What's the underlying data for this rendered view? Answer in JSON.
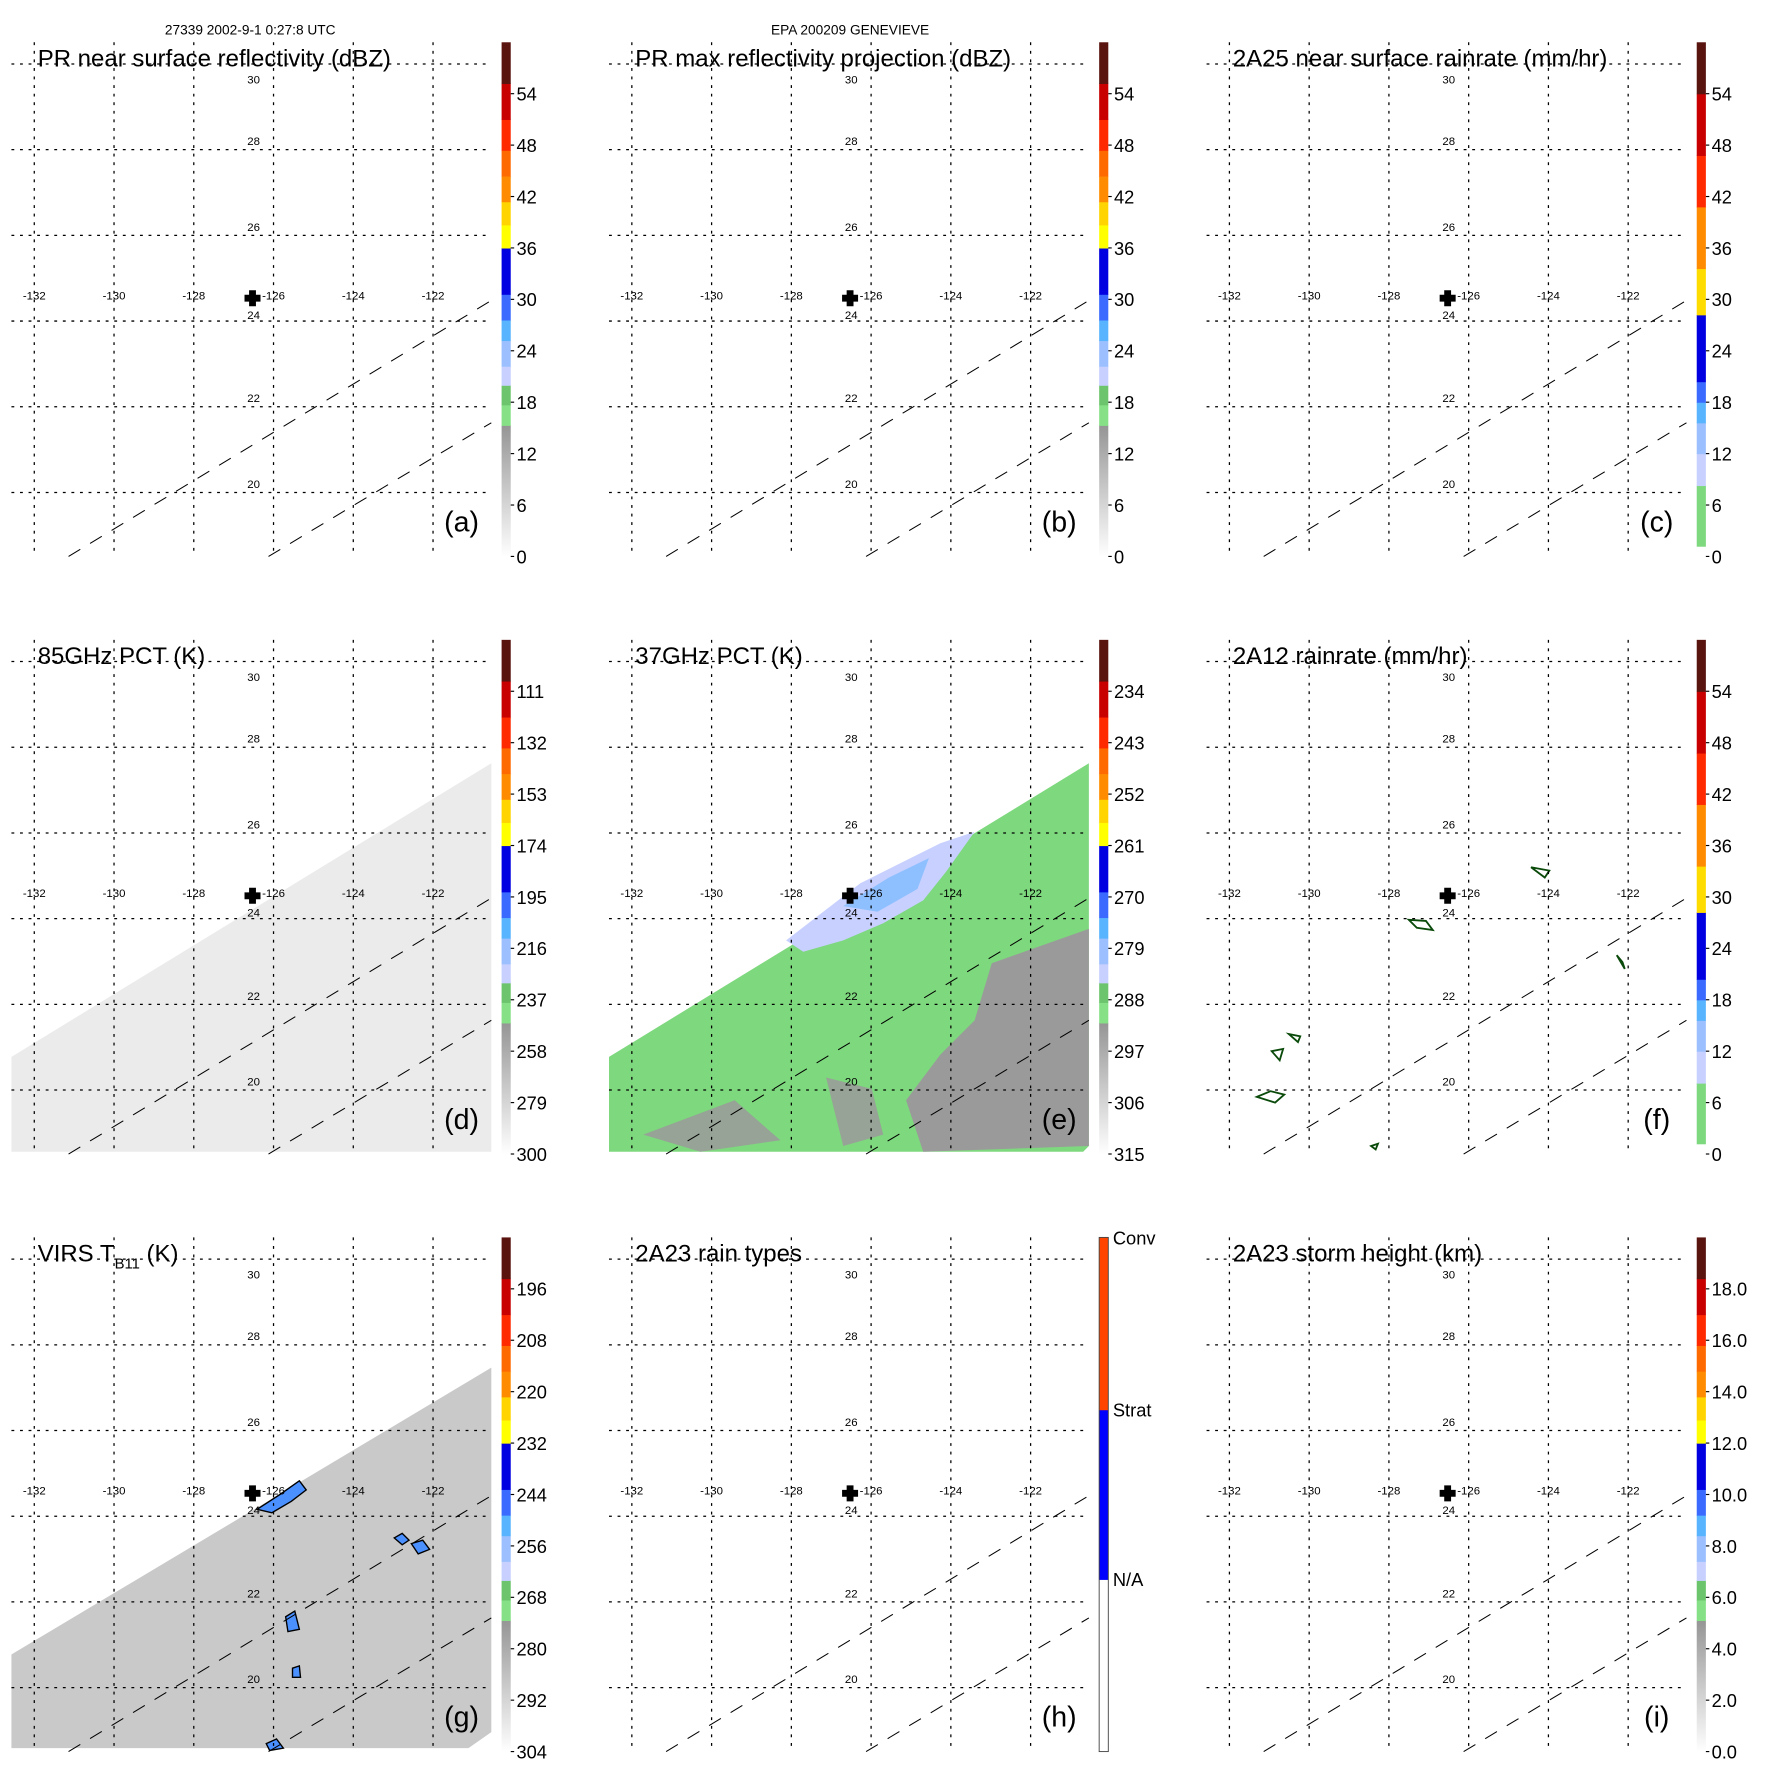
{
  "header": {
    "orbit_time": "27339 2002-9-1 0:27:8 UTC",
    "storm": "EPA 200209 GENEVIEVE"
  },
  "map_grid": {
    "lat_labels": [
      "30",
      "28",
      "26",
      "24",
      "22",
      "20"
    ],
    "lon_labels": [
      "-132",
      "-130",
      "-128",
      "-126",
      "-124",
      "-122"
    ],
    "storm_center_marker": "plus-icon"
  },
  "panels": [
    {
      "id": "a",
      "title": "PR near surface reflectivity (dBZ)",
      "label": "(a)",
      "colorbar": {
        "style": "gray",
        "ticks": [
          "54",
          "48",
          "42",
          "36",
          "30",
          "24",
          "18",
          "12",
          "6",
          "0"
        ]
      },
      "background": "none"
    },
    {
      "id": "b",
      "title": "PR max reflectivity projection (dBZ)",
      "label": "(b)",
      "colorbar": {
        "style": "gray",
        "ticks": [
          "54",
          "48",
          "42",
          "36",
          "30",
          "24",
          "18",
          "12",
          "6",
          "0"
        ]
      },
      "background": "none"
    },
    {
      "id": "c",
      "title": "2A25 near surface rainrate (mm/hr)",
      "label": "(c)",
      "colorbar": {
        "style": "nogray",
        "ticks": [
          "54",
          "48",
          "42",
          "36",
          "30",
          "24",
          "18",
          "12",
          "6",
          "0"
        ]
      },
      "background": "none"
    },
    {
      "id": "d",
      "title": "85GHz PCT (K)",
      "label": "(d)",
      "colorbar": {
        "style": "gray",
        "ticks": [
          "111",
          "132",
          "153",
          "174",
          "195",
          "216",
          "237",
          "258",
          "279",
          "300"
        ]
      },
      "background": "swath-light"
    },
    {
      "id": "e",
      "title": "37GHz PCT (K)",
      "label": "(e)",
      "colorbar": {
        "style": "gray",
        "ticks": [
          "234",
          "243",
          "252",
          "261",
          "270",
          "279",
          "288",
          "297",
          "306",
          "315"
        ]
      },
      "background": "swath-green"
    },
    {
      "id": "f",
      "title": "2A12 rainrate (mm/hr)",
      "label": "(f)",
      "colorbar": {
        "style": "nogray",
        "ticks": [
          "54",
          "48",
          "42",
          "36",
          "30",
          "24",
          "18",
          "12",
          "6",
          "0"
        ]
      },
      "background": "contours"
    },
    {
      "id": "g",
      "title": "VIRS T",
      "title_sub": "B11",
      "title_tail": " (K)",
      "label": "(g)",
      "colorbar": {
        "style": "gray",
        "ticks": [
          "196",
          "208",
          "220",
          "232",
          "244",
          "256",
          "268",
          "280",
          "292",
          "304"
        ]
      },
      "background": "swath-ir"
    },
    {
      "id": "h",
      "title": "2A23 rain types",
      "label": "(h)",
      "colorbar": {
        "style": "types",
        "ticks": [
          "Conv",
          "Strat",
          "N/A"
        ]
      },
      "background": "none"
    },
    {
      "id": "i",
      "title": "2A23 storm height (km)",
      "label": "(i)",
      "colorbar": {
        "style": "gray",
        "ticks": [
          "18.0",
          "16.0",
          "14.0",
          "12.0",
          "10.0",
          "8.0",
          "6.0",
          "4.0",
          "2.0",
          "0.0"
        ]
      },
      "background": "none"
    }
  ],
  "colors": {
    "swath_light": "#ebebeb",
    "swath_green": "#7ed87e",
    "swath_gray": "#9a9a9a",
    "swath_ir": "#c9c9c9",
    "cold_cloud": "#4a90ff"
  }
}
